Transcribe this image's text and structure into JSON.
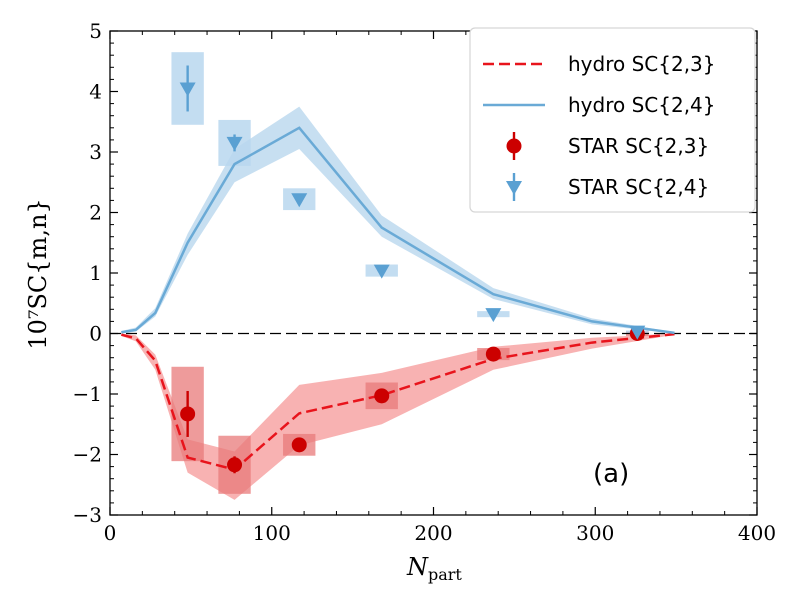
{
  "chart_data": {
    "type": "line",
    "xlabel": "N",
    "xlabel_sub": "part",
    "ylabel": "10⁷SC{m,n}",
    "xlim": [
      0,
      400
    ],
    "ylim": [
      -3,
      5
    ],
    "xticks": [
      0,
      100,
      200,
      300,
      400
    ],
    "yticks": [
      -3,
      -2,
      -1,
      0,
      1,
      2,
      3,
      4,
      5
    ],
    "panel_label": "(a)",
    "legend_position": "top-right",
    "colors": {
      "red": "#e8141c",
      "red_marker": "#cc0000",
      "blue": "#6aaad6",
      "blue_band": "#b9d7ee",
      "red_band": "#f7a5a5",
      "red_box": "#e87a7a",
      "blue_box": "#b9d7ee"
    },
    "zero_line": {
      "y": 0,
      "style": "dashed"
    },
    "series": [
      {
        "name": "hydro SC{2,3}",
        "kind": "line",
        "style": "dashed",
        "color": "#e8141c",
        "x": [
          7,
          16,
          28,
          48,
          77,
          117,
          168,
          237,
          298,
          349
        ],
        "y": [
          -0.02,
          -0.08,
          -0.45,
          -2.05,
          -2.25,
          -1.32,
          -1.02,
          -0.42,
          -0.15,
          -0.01
        ],
        "band_low": [
          -0.04,
          -0.13,
          -0.6,
          -2.3,
          -2.75,
          -1.85,
          -1.5,
          -0.6,
          -0.25,
          -0.02
        ],
        "band_high": [
          0.0,
          -0.03,
          -0.35,
          -1.75,
          -1.95,
          -0.85,
          -0.65,
          -0.22,
          -0.07,
          0.0
        ]
      },
      {
        "name": "hydro SC{2,4}",
        "kind": "line",
        "style": "solid",
        "color": "#6aaad6",
        "x": [
          7,
          16,
          28,
          48,
          77,
          117,
          168,
          237,
          298,
          349
        ],
        "y": [
          0.02,
          0.06,
          0.34,
          1.5,
          2.8,
          3.4,
          1.75,
          0.65,
          0.2,
          0.01
        ],
        "band_low": [
          0.0,
          0.03,
          0.28,
          1.3,
          2.5,
          3.05,
          1.6,
          0.57,
          0.15,
          0.0
        ],
        "band_high": [
          0.04,
          0.1,
          0.42,
          1.65,
          3.05,
          3.75,
          1.95,
          0.75,
          0.25,
          0.02
        ]
      },
      {
        "name": "STAR SC{2,3}",
        "kind": "points",
        "marker": "circle",
        "color": "#cc0000",
        "x": [
          48,
          77,
          117,
          168,
          237,
          326
        ],
        "y": [
          -1.33,
          -2.17,
          -1.84,
          -1.03,
          -0.34,
          0.0
        ],
        "err": [
          0.38,
          0.14,
          0.07,
          0.06,
          0.04,
          0.03
        ],
        "sys_halfwidth_x": [
          10,
          10,
          10,
          10,
          10,
          7
        ],
        "sys_halfheight_y": [
          0.78,
          0.48,
          0.18,
          0.22,
          0.1,
          0.04
        ]
      },
      {
        "name": "STAR SC{2,4}",
        "kind": "points",
        "marker": "triangle-down",
        "color": "#5aa0d2",
        "x": [
          48,
          77,
          117,
          168,
          237,
          326
        ],
        "y": [
          4.05,
          3.15,
          2.22,
          1.04,
          0.32,
          0.03
        ],
        "err": [
          0.38,
          0.14,
          0.06,
          0.04,
          0.03,
          0.02
        ],
        "sys_halfwidth_x": [
          10,
          10,
          10,
          10,
          10,
          7
        ],
        "sys_halfheight_y": [
          0.6,
          0.38,
          0.18,
          0.1,
          0.05,
          0.02
        ]
      }
    ]
  }
}
